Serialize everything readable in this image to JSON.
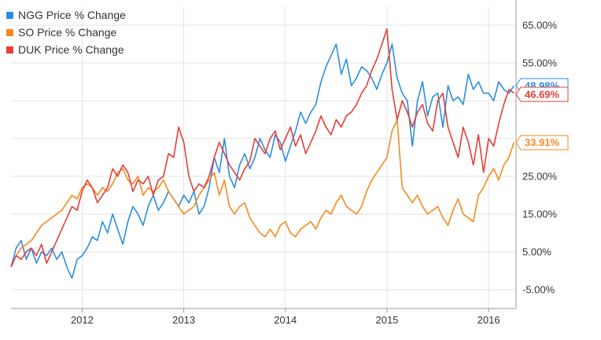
{
  "chart_data": {
    "type": "line",
    "title": "",
    "xlabel": "",
    "ylabel": "",
    "xlim": [
      2011.3,
      2016.27
    ],
    "ylim": [
      -10,
      70
    ],
    "x_ticks": [
      {
        "value": 2012,
        "label": "2012"
      },
      {
        "value": 2013,
        "label": "2013"
      },
      {
        "value": 2014,
        "label": "2014"
      },
      {
        "value": 2015,
        "label": "2015"
      },
      {
        "value": 2016,
        "label": "2016"
      }
    ],
    "y_ticks": [
      {
        "value": 65,
        "label": "65.00%"
      },
      {
        "value": 55,
        "label": "55.00%"
      },
      {
        "value": 45,
        "label": ""
      },
      {
        "value": 35,
        "label": ""
      },
      {
        "value": 25,
        "label": "25.00%"
      },
      {
        "value": 15,
        "label": "15.00%"
      },
      {
        "value": 5,
        "label": "5.00%"
      },
      {
        "value": -5,
        "label": "-5.00%"
      }
    ],
    "grid": true,
    "legend_position": "top-left",
    "series": [
      {
        "name": "NGG Price % Change",
        "color": "#2b8ee3",
        "end_label": "48.98%",
        "end_value": 48.98,
        "x": [
          2011.3,
          2011.35,
          2011.4,
          2011.45,
          2011.5,
          2011.55,
          2011.6,
          2011.65,
          2011.7,
          2011.75,
          2011.8,
          2011.85,
          2011.9,
          2011.95,
          2012.0,
          2012.05,
          2012.1,
          2012.15,
          2012.2,
          2012.25,
          2012.3,
          2012.35,
          2012.4,
          2012.45,
          2012.5,
          2012.55,
          2012.6,
          2012.65,
          2012.7,
          2012.75,
          2012.8,
          2012.85,
          2012.9,
          2012.95,
          2013.0,
          2013.05,
          2013.1,
          2013.15,
          2013.2,
          2013.25,
          2013.3,
          2013.35,
          2013.4,
          2013.45,
          2013.5,
          2013.55,
          2013.6,
          2013.65,
          2013.7,
          2013.75,
          2013.8,
          2013.85,
          2013.9,
          2013.95,
          2014.0,
          2014.05,
          2014.1,
          2014.15,
          2014.2,
          2014.25,
          2014.3,
          2014.35,
          2014.4,
          2014.45,
          2014.5,
          2014.55,
          2014.6,
          2014.65,
          2014.7,
          2014.75,
          2014.8,
          2014.85,
          2014.9,
          2014.95,
          2015.0,
          2015.05,
          2015.1,
          2015.15,
          2015.2,
          2015.25,
          2015.3,
          2015.35,
          2015.4,
          2015.45,
          2015.5,
          2015.55,
          2015.6,
          2015.65,
          2015.7,
          2015.75,
          2015.8,
          2015.85,
          2015.9,
          2015.95,
          2016.0,
          2016.05,
          2016.1,
          2016.15,
          2016.2,
          2016.25
        ],
        "values": [
          1,
          6,
          8,
          3,
          6,
          2,
          5,
          4,
          6,
          3,
          5,
          1,
          -2,
          3,
          4,
          6,
          9,
          8,
          13,
          10,
          15,
          11,
          7,
          13,
          17,
          15,
          12,
          17,
          20,
          16,
          18,
          21,
          19,
          17,
          20,
          18,
          21,
          15,
          17,
          22,
          30,
          26,
          35,
          25,
          22,
          28,
          31,
          27,
          30,
          35,
          32,
          30,
          36,
          34,
          29,
          33,
          37,
          42,
          39,
          42,
          44,
          50,
          54,
          57,
          60,
          52,
          56,
          49,
          51,
          54,
          53,
          51,
          48,
          52,
          55,
          60,
          51,
          47,
          45,
          33,
          45,
          50,
          41,
          46,
          47,
          38,
          49,
          45,
          46,
          44,
          52,
          48,
          50,
          47,
          47,
          45,
          50,
          48,
          47,
          49
        ]
      },
      {
        "name": "SO Price % Change",
        "color": "#f7891f",
        "end_label": "33.91%",
        "end_value": 33.91,
        "x": [
          2011.3,
          2011.35,
          2011.4,
          2011.45,
          2011.5,
          2011.55,
          2011.6,
          2011.65,
          2011.7,
          2011.75,
          2011.8,
          2011.85,
          2011.9,
          2011.95,
          2012.0,
          2012.05,
          2012.1,
          2012.15,
          2012.2,
          2012.25,
          2012.3,
          2012.35,
          2012.4,
          2012.45,
          2012.5,
          2012.55,
          2012.6,
          2012.65,
          2012.7,
          2012.75,
          2012.8,
          2012.85,
          2012.9,
          2012.95,
          2013.0,
          2013.05,
          2013.1,
          2013.15,
          2013.2,
          2013.25,
          2013.3,
          2013.35,
          2013.4,
          2013.45,
          2013.5,
          2013.55,
          2013.6,
          2013.65,
          2013.7,
          2013.75,
          2013.8,
          2013.85,
          2013.9,
          2013.95,
          2014.0,
          2014.05,
          2014.1,
          2014.15,
          2014.2,
          2014.25,
          2014.3,
          2014.35,
          2014.4,
          2014.45,
          2014.5,
          2014.55,
          2014.6,
          2014.65,
          2014.7,
          2014.75,
          2014.8,
          2014.85,
          2014.9,
          2014.95,
          2015.0,
          2015.05,
          2015.1,
          2015.15,
          2015.2,
          2015.25,
          2015.3,
          2015.35,
          2015.4,
          2015.45,
          2015.5,
          2015.55,
          2015.6,
          2015.65,
          2015.7,
          2015.75,
          2015.8,
          2015.85,
          2015.9,
          2015.95,
          2016.0,
          2016.05,
          2016.1,
          2016.15,
          2016.2,
          2016.25
        ],
        "values": [
          1,
          4,
          6,
          7,
          8,
          10,
          12,
          13,
          14,
          15,
          16,
          18,
          20,
          19,
          22,
          23,
          22,
          20,
          22,
          21,
          23,
          26,
          27,
          24,
          23,
          25,
          20,
          22,
          21,
          22,
          24,
          21,
          19,
          17,
          15,
          16,
          17,
          20,
          22,
          24,
          26,
          20,
          24,
          17,
          15,
          17,
          18,
          14,
          12,
          10,
          9,
          11,
          9,
          12,
          13,
          10,
          9,
          11,
          12,
          13,
          11,
          14,
          16,
          15,
          18,
          20,
          17,
          16,
          15,
          17,
          21,
          24,
          26,
          28,
          30,
          37,
          40,
          22,
          20,
          18,
          20,
          17,
          15,
          16,
          17,
          14,
          12,
          16,
          19,
          15,
          14,
          13,
          20,
          22,
          25,
          27,
          24,
          28,
          30,
          34
        ]
      },
      {
        "name": "DUK Price % Change",
        "color": "#e53e37",
        "end_label": "46.69%",
        "end_value": 46.69,
        "x": [
          2011.3,
          2011.35,
          2011.4,
          2011.45,
          2011.5,
          2011.55,
          2011.6,
          2011.65,
          2011.7,
          2011.75,
          2011.8,
          2011.85,
          2011.9,
          2011.95,
          2012.0,
          2012.05,
          2012.1,
          2012.15,
          2012.2,
          2012.25,
          2012.3,
          2012.35,
          2012.4,
          2012.45,
          2012.5,
          2012.55,
          2012.6,
          2012.65,
          2012.7,
          2012.75,
          2012.8,
          2012.85,
          2012.9,
          2012.95,
          2013.0,
          2013.05,
          2013.1,
          2013.15,
          2013.2,
          2013.25,
          2013.3,
          2013.35,
          2013.4,
          2013.45,
          2013.5,
          2013.55,
          2013.6,
          2013.65,
          2013.7,
          2013.75,
          2013.8,
          2013.85,
          2013.9,
          2013.95,
          2014.0,
          2014.05,
          2014.1,
          2014.15,
          2014.2,
          2014.25,
          2014.3,
          2014.35,
          2014.4,
          2014.45,
          2014.5,
          2014.55,
          2014.6,
          2014.65,
          2014.7,
          2014.75,
          2014.8,
          2014.85,
          2014.9,
          2014.95,
          2015.0,
          2015.05,
          2015.1,
          2015.15,
          2015.2,
          2015.25,
          2015.3,
          2015.35,
          2015.4,
          2015.45,
          2015.5,
          2015.55,
          2015.6,
          2015.65,
          2015.7,
          2015.75,
          2015.8,
          2015.85,
          2015.9,
          2015.95,
          2016.0,
          2016.05,
          2016.1,
          2016.15,
          2016.2,
          2016.25
        ],
        "values": [
          1,
          4,
          3,
          5,
          6,
          4,
          7,
          2,
          5,
          8,
          11,
          14,
          17,
          16,
          21,
          24,
          22,
          18,
          20,
          22,
          27,
          25,
          28,
          26,
          21,
          24,
          23,
          25,
          20,
          24,
          25,
          31,
          30,
          38,
          34,
          25,
          21,
          23,
          22,
          25,
          30,
          34,
          31,
          28,
          26,
          24,
          27,
          29,
          35,
          33,
          31,
          35,
          37,
          32,
          35,
          38,
          33,
          36,
          31,
          34,
          37,
          41,
          38,
          36,
          40,
          38,
          41,
          42,
          44,
          47,
          49,
          53,
          56,
          60,
          64,
          48,
          40,
          45,
          42,
          38,
          42,
          44,
          39,
          37,
          45,
          47,
          38,
          34,
          30,
          38,
          34,
          28,
          36,
          26,
          35,
          33,
          39,
          44,
          48,
          47
        ]
      }
    ]
  }
}
